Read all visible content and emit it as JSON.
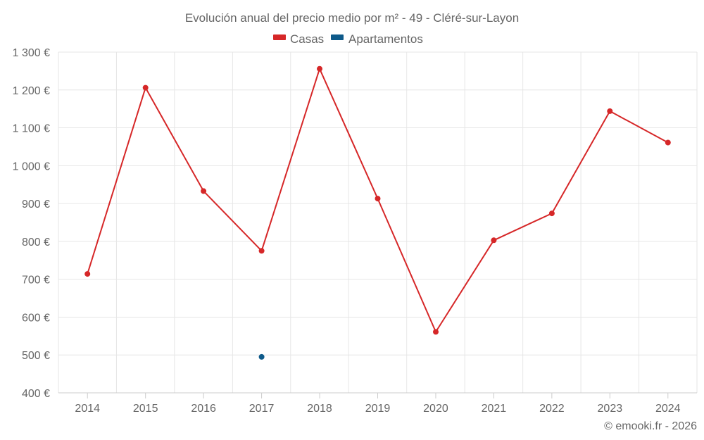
{
  "chart_data": {
    "type": "line",
    "title": "Evolución anual del precio medio por m² - 49 - Cléré-sur-Layon",
    "categories": [
      "2014",
      "2015",
      "2016",
      "2017",
      "2018",
      "2019",
      "2020",
      "2021",
      "2022",
      "2023",
      "2024"
    ],
    "y_ticks": [
      "400 €",
      "500 €",
      "600 €",
      "700 €",
      "800 €",
      "900 €",
      "1 000 €",
      "1 100 €",
      "1 200 €",
      "1 300 €"
    ],
    "ylim": [
      400,
      1300
    ],
    "grid": true,
    "legend_position": "top-center",
    "series": [
      {
        "name": "Casas",
        "color": "#d62728",
        "values": [
          714,
          1206,
          933,
          775,
          1256,
          913,
          561,
          803,
          874,
          1144,
          1061
        ]
      },
      {
        "name": "Apartamentos",
        "color": "#0e5a8a",
        "values": [
          null,
          null,
          null,
          495,
          null,
          null,
          null,
          null,
          null,
          null,
          null
        ]
      }
    ]
  },
  "credit": "© emooki.fr - 2026"
}
